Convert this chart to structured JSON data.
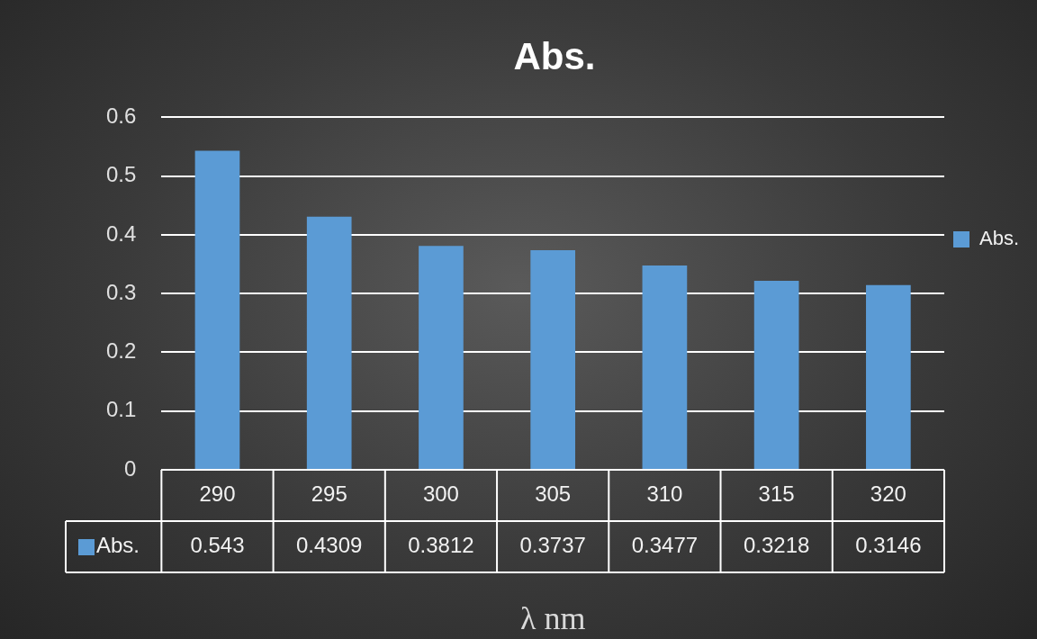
{
  "chart_data": {
    "type": "bar",
    "title": "Abs.",
    "xlabel": "λ nm",
    "categories": [
      "290",
      "295",
      "300",
      "305",
      "310",
      "315",
      "320"
    ],
    "series": [
      {
        "name": "Abs.",
        "color": "#5b9bd5",
        "values": [
          0.543,
          0.4309,
          0.3812,
          0.3737,
          0.3477,
          0.3218,
          0.3146
        ]
      }
    ],
    "ylim": [
      0,
      0.6
    ],
    "yticks": [
      0,
      0.1,
      0.2,
      0.3,
      0.4,
      0.5,
      0.6
    ],
    "grid": "y",
    "legend": "right",
    "data_labels": true
  }
}
